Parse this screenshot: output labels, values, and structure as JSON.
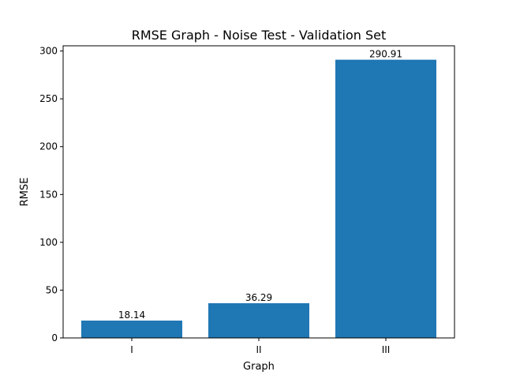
{
  "chart_data": {
    "type": "bar",
    "title": "RMSE Graph - Noise Test - Validation Set",
    "xlabel": "Graph",
    "ylabel": "RMSE",
    "categories": [
      "I",
      "II",
      "III"
    ],
    "values": [
      18.14,
      36.29,
      290.91
    ],
    "data_labels": [
      "18.14",
      "36.29",
      "290.91"
    ],
    "ylim": [
      0,
      305.46
    ],
    "yticks": [
      0,
      50,
      100,
      150,
      200,
      250,
      300
    ],
    "bar_color": "#1f77b4",
    "grid": false,
    "legend": "none"
  }
}
